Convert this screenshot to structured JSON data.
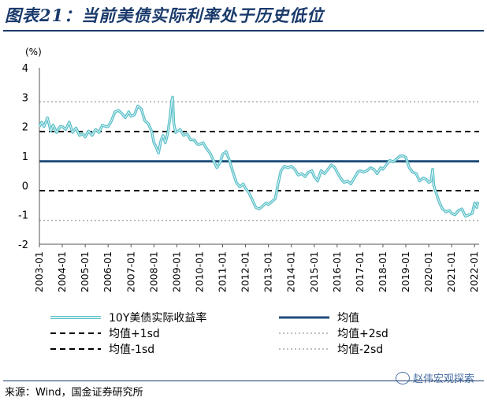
{
  "header": {
    "title": "图表21：当前美债实际利率处于历史低位"
  },
  "footer": {
    "source": "来源：Wind，国金证券研究所",
    "watermark": "赵伟宏观探索"
  },
  "colors": {
    "series": "#5bc0c8",
    "mean": "#1f4e79",
    "sd1": "#000000",
    "sd2": "#aaaaaa",
    "axis": "#555555",
    "title": "#1a3a6b"
  },
  "icons": {
    "watermark": "wechat-icon"
  },
  "chart_data": {
    "type": "line",
    "title": "",
    "ylabel": "(%)",
    "xlabel": "",
    "ylim": [
      -2,
      4
    ],
    "yticks": [
      "4",
      "3",
      "2",
      "1",
      "0",
      "-1",
      "-2"
    ],
    "xlim": [
      2003.0,
      2022.2
    ],
    "xticks": [
      "2003-01",
      "2004-01",
      "2005-01",
      "2006-01",
      "2007-01",
      "2008-01",
      "2009-01",
      "2010-01",
      "2011-01",
      "2012-01",
      "2013-01",
      "2014-01",
      "2015-01",
      "2016-01",
      "2017-01",
      "2018-01",
      "2019-01",
      "2020-01",
      "2021-01",
      "2022-01"
    ],
    "grid": false,
    "legend_placement": "bottom",
    "series": [
      {
        "name": "10Y美债实际收益率",
        "x": [
          2003.0,
          2003.1,
          2003.2,
          2003.35,
          2003.5,
          2003.6,
          2003.75,
          2003.9,
          2004.0,
          2004.15,
          2004.3,
          2004.45,
          2004.6,
          2004.75,
          2004.9,
          2005.0,
          2005.15,
          2005.3,
          2005.45,
          2005.6,
          2005.75,
          2005.9,
          2006.0,
          2006.15,
          2006.3,
          2006.45,
          2006.6,
          2006.75,
          2006.9,
          2007.0,
          2007.15,
          2007.3,
          2007.45,
          2007.6,
          2007.75,
          2007.9,
          2008.0,
          2008.1,
          2008.2,
          2008.3,
          2008.4,
          2008.5,
          2008.6,
          2008.7,
          2008.78,
          2008.82,
          2008.87,
          2008.95,
          2009.05,
          2009.15,
          2009.3,
          2009.45,
          2009.6,
          2009.75,
          2009.9,
          2010.0,
          2010.15,
          2010.3,
          2010.45,
          2010.6,
          2010.75,
          2010.9,
          2011.0,
          2011.15,
          2011.3,
          2011.45,
          2011.6,
          2011.75,
          2011.9,
          2012.0,
          2012.15,
          2012.3,
          2012.45,
          2012.6,
          2012.75,
          2012.9,
          2013.0,
          2013.15,
          2013.3,
          2013.42,
          2013.55,
          2013.7,
          2013.85,
          2014.0,
          2014.15,
          2014.3,
          2014.45,
          2014.6,
          2014.75,
          2014.9,
          2015.0,
          2015.15,
          2015.3,
          2015.45,
          2015.6,
          2015.75,
          2015.9,
          2016.0,
          2016.15,
          2016.3,
          2016.45,
          2016.6,
          2016.75,
          2016.9,
          2017.0,
          2017.15,
          2017.3,
          2017.45,
          2017.6,
          2017.75,
          2017.9,
          2018.0,
          2018.15,
          2018.3,
          2018.45,
          2018.6,
          2018.75,
          2018.9,
          2019.0,
          2019.15,
          2019.3,
          2019.45,
          2019.6,
          2019.75,
          2019.9,
          2020.0,
          2020.1,
          2020.17,
          2020.22,
          2020.3,
          2020.45,
          2020.6,
          2020.75,
          2020.9,
          2021.0,
          2021.15,
          2021.3,
          2021.45,
          2021.6,
          2021.75,
          2021.9,
          2022.0,
          2022.1,
          2022.15
        ],
        "values": [
          2.0,
          2.15,
          2.0,
          2.3,
          1.85,
          2.05,
          1.8,
          2.0,
          2.0,
          1.9,
          2.15,
          1.8,
          1.95,
          1.7,
          1.75,
          1.65,
          1.85,
          1.7,
          1.9,
          1.8,
          2.05,
          2.0,
          2.0,
          2.2,
          2.5,
          2.55,
          2.45,
          2.3,
          2.5,
          2.35,
          2.4,
          2.7,
          2.6,
          2.2,
          2.1,
          1.85,
          1.45,
          1.3,
          1.1,
          1.5,
          1.7,
          1.45,
          1.75,
          2.3,
          2.9,
          3.0,
          2.1,
          1.8,
          1.85,
          1.9,
          1.7,
          1.75,
          1.55,
          1.55,
          1.4,
          1.4,
          1.45,
          1.25,
          1.1,
          0.85,
          0.6,
          0.8,
          1.05,
          1.15,
          0.85,
          0.45,
          0.1,
          -0.05,
          0.05,
          -0.1,
          -0.25,
          -0.5,
          -0.75,
          -0.8,
          -0.7,
          -0.6,
          -0.65,
          -0.55,
          -0.45,
          0.05,
          0.5,
          0.65,
          0.6,
          0.65,
          0.55,
          0.35,
          0.4,
          0.3,
          0.45,
          0.5,
          0.3,
          0.15,
          0.5,
          0.4,
          0.55,
          0.7,
          0.6,
          0.45,
          0.25,
          0.1,
          0.15,
          0.05,
          0.25,
          0.45,
          0.5,
          0.45,
          0.5,
          0.6,
          0.55,
          0.4,
          0.6,
          0.55,
          0.7,
          0.85,
          0.8,
          0.9,
          1.0,
          1.0,
          0.95,
          0.6,
          0.45,
          0.4,
          0.15,
          0.25,
          0.2,
          0.1,
          0.15,
          0.55,
          0.0,
          -0.2,
          -0.55,
          -0.8,
          -0.9,
          -0.85,
          -0.95,
          -1.0,
          -0.85,
          -0.8,
          -1.05,
          -1.0,
          -0.95,
          -0.6,
          -0.75,
          -0.55
        ]
      }
    ],
    "reference_lines": [
      {
        "name": "均值",
        "value": 0.82,
        "style": "solid"
      },
      {
        "name": "均值+1sd",
        "value": 1.83,
        "style": "dashed"
      },
      {
        "name": "均值-1sd",
        "value": -0.18,
        "style": "dashed"
      },
      {
        "name": "均值+2sd",
        "value": 2.84,
        "style": "dotted"
      },
      {
        "name": "均值-2sd",
        "value": -1.19,
        "style": "dotted"
      }
    ]
  }
}
